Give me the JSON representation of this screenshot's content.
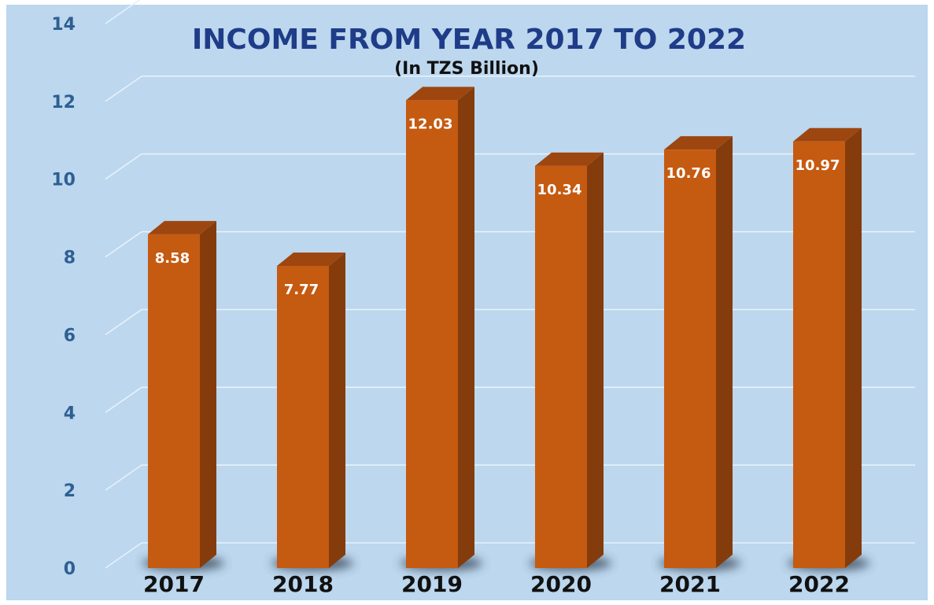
{
  "chart_data": {
    "type": "bar",
    "title": "INCOME FROM YEAR 2017 TO 2022",
    "subtitle": "(In TZS Billion)",
    "categories": [
      "2017",
      "2018",
      "2019",
      "2020",
      "2021",
      "2022"
    ],
    "values": [
      8.58,
      7.77,
      12.03,
      10.34,
      10.76,
      10.97
    ],
    "data_labels": [
      "8.58",
      "7.77",
      "12.03",
      "10.34",
      "10.76",
      "10.97"
    ],
    "ylim": [
      0,
      14
    ],
    "y_ticks": [
      0,
      2,
      4,
      6,
      8,
      10,
      12,
      14
    ],
    "grid": true,
    "legend": "none",
    "colors": {
      "background": "#bcd7ee",
      "bar_front": "#c55a11",
      "bar_side": "#843c0c",
      "bar_top": "#9e4610",
      "grid": "#e8f1fa",
      "title": "#1f3c88",
      "subtitle": "#111111",
      "ytick": "#2e5f92",
      "xtick": "#111111",
      "data_label": "#ffffff",
      "shadow": "#3a4a5a"
    }
  }
}
